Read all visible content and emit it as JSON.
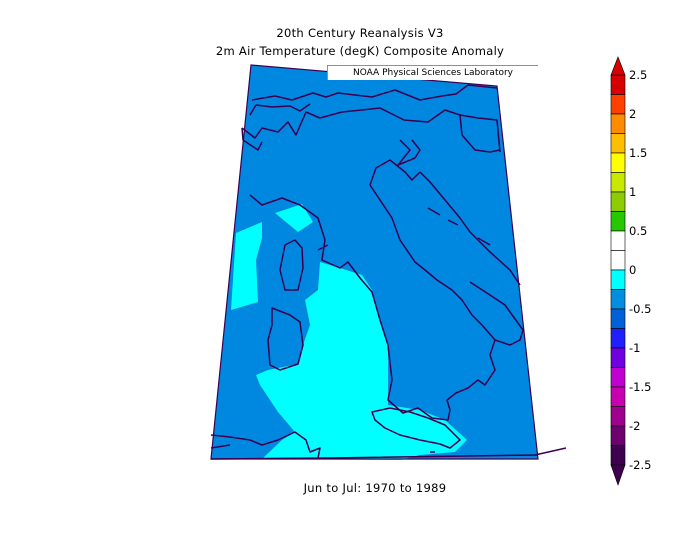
{
  "header": {
    "title": "20th Century Reanalysis V3",
    "subtitle": "2m Air Temperature (degK) Composite Anomaly"
  },
  "credit": "NOAA Physical Sciences Laboratory",
  "footer": {
    "period": "Jun to Jul: 1970 to 1989"
  },
  "map": {
    "region": "Italy",
    "anomaly_fill_colors": {
      "minus_0_5_to_0": "#00ffff",
      "minus_1_to_minus_0_5": "#0088e0"
    },
    "coastline_color": "#3c0050"
  },
  "colorbar": {
    "labels": [
      "2.5",
      "2",
      "1.5",
      "1",
      "0.5",
      "0",
      "-0.5",
      "-1",
      "-1.5",
      "-2",
      "-2.5"
    ],
    "colors": [
      "#d70000",
      "#ff4000",
      "#ff8c00",
      "#ffbf00",
      "#ffff00",
      "#c8e800",
      "#8ccc00",
      "#28c800",
      "#ffffff",
      "#ffffff",
      "#00ffff",
      "#008ee0",
      "#0060d8",
      "#2020ff",
      "#7000e0",
      "#c000d0",
      "#c800b0",
      "#a00090",
      "#6e0070",
      "#400050"
    ]
  }
}
